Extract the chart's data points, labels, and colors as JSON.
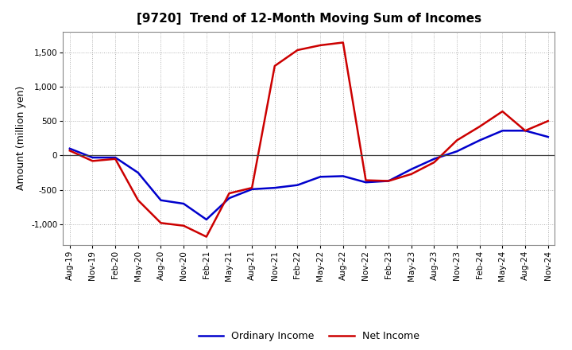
{
  "title": "[9720]  Trend of 12-Month Moving Sum of Incomes",
  "ylabel": "Amount (million yen)",
  "background_color": "#ffffff",
  "plot_bg_color": "#ffffff",
  "grid_color": "#b0b0b0",
  "x_labels": [
    "Aug-19",
    "Nov-19",
    "Feb-20",
    "May-20",
    "Aug-20",
    "Nov-20",
    "Feb-21",
    "May-21",
    "Aug-21",
    "Nov-21",
    "Feb-22",
    "May-22",
    "Aug-22",
    "Nov-22",
    "Feb-23",
    "May-23",
    "Aug-23",
    "Nov-23",
    "Feb-24",
    "May-24",
    "Aug-24",
    "Nov-24"
  ],
  "ordinary_income": [
    100,
    -30,
    -30,
    -250,
    -650,
    -700,
    -930,
    -620,
    -490,
    -470,
    -430,
    -310,
    -300,
    -390,
    -370,
    -200,
    -50,
    60,
    220,
    360,
    360,
    270
  ],
  "net_income": [
    70,
    -80,
    -50,
    -650,
    -980,
    -1020,
    -1180,
    -550,
    -470,
    1300,
    1530,
    1600,
    1640,
    -360,
    -370,
    -270,
    -100,
    220,
    420,
    640,
    360,
    500
  ],
  "ylim": [
    -1300,
    1800
  ],
  "yticks": [
    -1000,
    -500,
    0,
    500,
    1000,
    1500
  ],
  "ordinary_color": "#0000cc",
  "net_color": "#cc0000",
  "line_width": 1.8,
  "title_fontsize": 11,
  "legend_fontsize": 9,
  "tick_fontsize": 7.5
}
